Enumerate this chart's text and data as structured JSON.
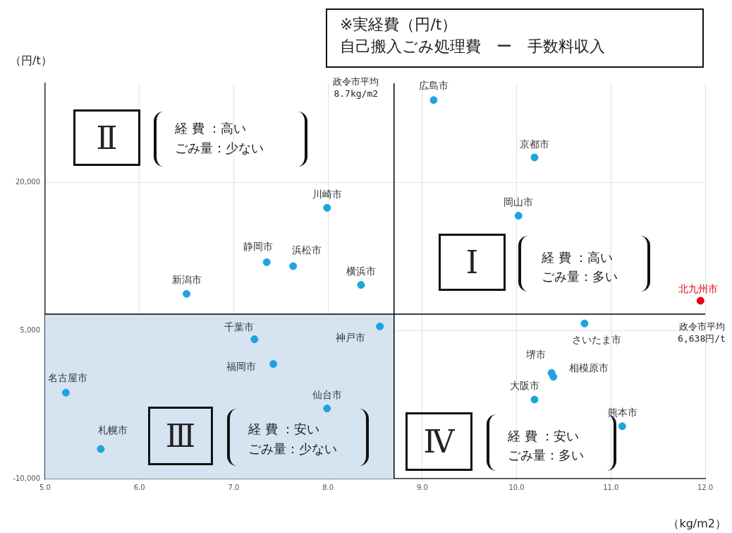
{
  "chart_data": {
    "type": "scatter",
    "title": "※実経費（円/t）",
    "subtitle": "自己搬入ごみ処理費　ー　手数料収入",
    "xlabel": "（kg/m2）",
    "ylabel": "（円/t）",
    "xlim": [
      5,
      12
    ],
    "xticks": [
      {
        "value": 5,
        "label": "5.0"
      },
      {
        "value": 6,
        "label": "6.0"
      },
      {
        "value": 7,
        "label": "7.0"
      },
      {
        "value": 8,
        "label": "8.0"
      },
      {
        "value": 9,
        "label": "9.0"
      },
      {
        "value": 10,
        "label": "10.0"
      },
      {
        "value": 11,
        "label": "11.0"
      },
      {
        "value": 12,
        "label": "12.0"
      }
    ],
    "ylim": [
      -10000,
      30000
    ],
    "yticks": [
      {
        "value": -10000,
        "label": "-10,000"
      },
      {
        "value": 5000,
        "label": "5,000"
      },
      {
        "value": 20000,
        "label": "20,000"
      }
    ],
    "grid": true,
    "legend": false,
    "marker": "circle",
    "ref_lines": [
      {
        "axis": "x",
        "value": 8.7,
        "label": "政令市平均\n8.7kg/m2",
        "color": "#000000"
      },
      {
        "axis": "y",
        "value": 6638,
        "label": "政令市平均\n6,638円/t",
        "color": "#000000"
      }
    ],
    "bands": [
      {
        "axis": "y",
        "from": -10000,
        "to": 6638,
        "color": "#d6e4f2"
      }
    ],
    "annotations": [
      "Ⅱ",
      "経 費 ：高い",
      "ごみ量：少ない",
      "Ⅰ",
      "経 費 ：高い",
      "ごみ量：多い",
      "Ⅲ",
      "経 費 ：安い",
      "ごみ量：少ない",
      "Ⅳ",
      "経 費 ：安い",
      "ごみ量：多い"
    ],
    "series": [
      {
        "name": "広島市",
        "color": "#1fa3e0",
        "x": [
          9.12
        ],
        "values": [
          28300
        ]
      },
      {
        "name": "京都市",
        "color": "#1fa3e0",
        "x": [
          10.19
        ],
        "values": [
          22500
        ]
      },
      {
        "name": "川崎市",
        "color": "#1fa3e0",
        "x": [
          7.99
        ],
        "values": [
          17400
        ]
      },
      {
        "name": "岡山市",
        "color": "#1fa3e0",
        "x": [
          10.02
        ],
        "values": [
          16600
        ]
      },
      {
        "name": "静岡市",
        "color": "#1fa3e0",
        "x": [
          7.35
        ],
        "values": [
          11900
        ]
      },
      {
        "name": "浜松市",
        "color": "#1fa3e0",
        "x": [
          7.63
        ],
        "values": [
          11500
        ]
      },
      {
        "name": "横浜市",
        "color": "#1fa3e0",
        "x": [
          8.35
        ],
        "values": [
          9600
        ]
      },
      {
        "name": "新潟市",
        "color": "#1fa3e0",
        "x": [
          6.5
        ],
        "values": [
          8700
        ]
      },
      {
        "name": "北九州市",
        "color": "#e60012",
        "x": [
          11.95
        ],
        "values": [
          8000
        ]
      },
      {
        "name": "神戸市",
        "color": "#1fa3e0",
        "x": [
          8.55
        ],
        "values": [
          5400
        ]
      },
      {
        "name": "さいたま市",
        "color": "#1fa3e0",
        "x": [
          10.72
        ],
        "values": [
          5700
        ]
      },
      {
        "name": "千葉市",
        "color": "#1fa3e0",
        "x": [
          7.22
        ],
        "values": [
          4100
        ]
      },
      {
        "name": "福岡市",
        "color": "#1fa3e0",
        "x": [
          7.42
        ],
        "values": [
          1600
        ]
      },
      {
        "name": "堺市",
        "color": "#1fa3e0",
        "x": [
          10.37
        ],
        "values": [
          700
        ]
      },
      {
        "name": "相模原市",
        "color": "#1fa3e0",
        "x": [
          10.39
        ],
        "values": [
          300
        ]
      },
      {
        "name": "大阪市",
        "color": "#1fa3e0",
        "x": [
          10.19
        ],
        "values": [
          -2000
        ]
      },
      {
        "name": "名古屋市",
        "color": "#1fa3e0",
        "x": [
          5.22
        ],
        "values": [
          -1300
        ]
      },
      {
        "name": "仙台市",
        "color": "#1fa3e0",
        "x": [
          7.99
        ],
        "values": [
          -2900
        ]
      },
      {
        "name": "熊本市",
        "color": "#1fa3e0",
        "x": [
          11.12
        ],
        "values": [
          -4700
        ]
      },
      {
        "name": "札幌市",
        "color": "#1fa3e0",
        "x": [
          5.59
        ],
        "values": [
          -7000
        ]
      }
    ]
  }
}
